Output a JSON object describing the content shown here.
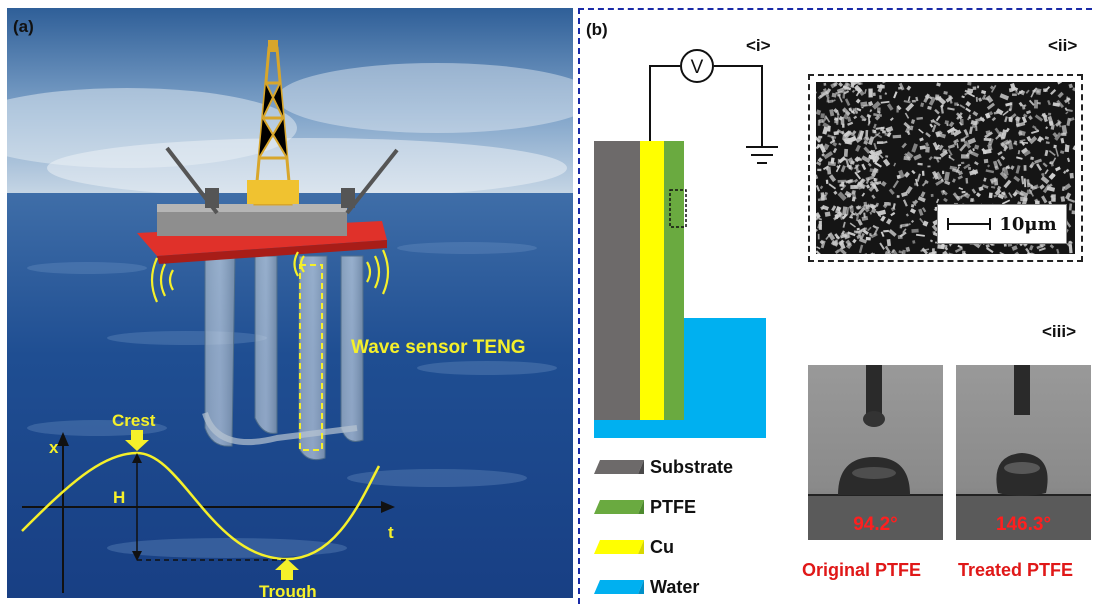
{
  "panel_a": {
    "label": "(a)",
    "teng_label": "Wave sensor TENG",
    "crest_label": "Crest",
    "trough_label": "Trough",
    "x_axis_label": "x",
    "t_axis_label": "t",
    "height_label": "H"
  },
  "panel_b": {
    "label": "(b)",
    "sub_i": "<i>",
    "sub_ii": "<ii>",
    "sub_iii": "<iii>",
    "voltmeter_symbol": "V",
    "scale_bar": "10μm",
    "legend": [
      {
        "label": "Substrate",
        "color": "#6d6a6a"
      },
      {
        "label": "PTFE",
        "color": "#6aaa40"
      },
      {
        "label": "Cu",
        "color": "#ffff00"
      },
      {
        "label": "Water",
        "color": "#00b0f0"
      }
    ],
    "angle_original": "94.2°",
    "angle_treated": "146.3°",
    "caption_original": "Original PTFE",
    "caption_treated": "Treated PTFE"
  },
  "colors": {
    "accent_yellow": "#f5f02a",
    "angle_red": "#e01818",
    "border_blue": "#1a2ba8",
    "platform_red": "#e0312a"
  }
}
